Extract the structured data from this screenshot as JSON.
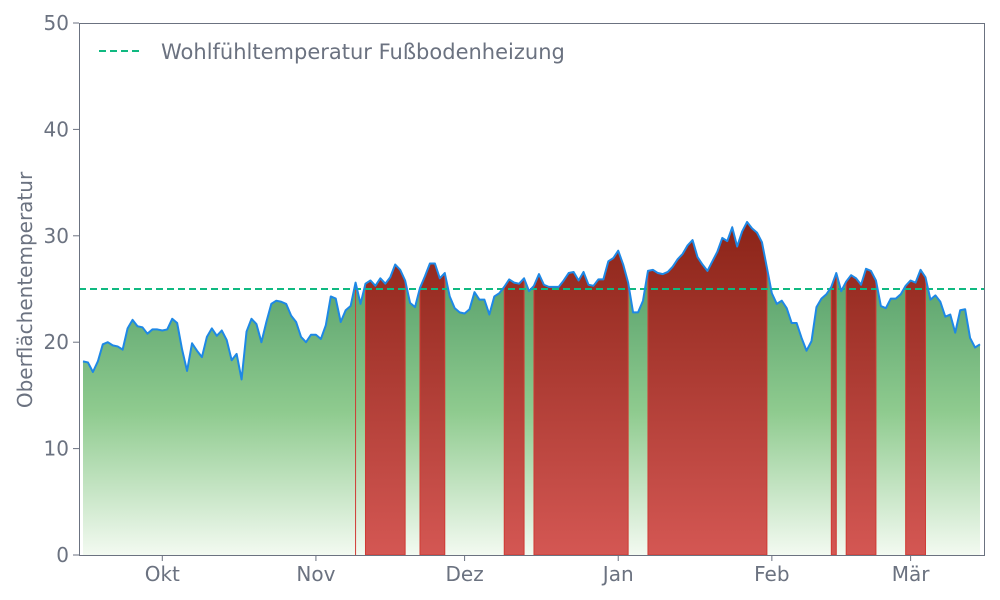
{
  "chart_data": {
    "type": "area",
    "title": "",
    "xlabel": "",
    "ylabel": "Oberflächentemperatur",
    "ylim": [
      0,
      50
    ],
    "yticks": [
      0,
      10,
      20,
      30,
      40,
      50
    ],
    "xticks": [
      {
        "date": "10-01",
        "label": "Okt"
      },
      {
        "date": "11-01",
        "label": "Nov"
      },
      {
        "date": "12-01",
        "label": "Dez"
      },
      {
        "date": "01-01",
        "label": "Jan"
      },
      {
        "date": "02-01",
        "label": "Feb"
      },
      {
        "date": "03-01",
        "label": "Mär"
      }
    ],
    "grid": false,
    "legend": {
      "position": "top-left",
      "entries": [
        "Wohlfühltemperatur Fußbodenheizung"
      ]
    },
    "threshold": {
      "name": "Wohlfühltemperatur Fußbodenheizung",
      "value": 25,
      "color": "#10b981",
      "style": "dashed"
    },
    "colors": {
      "line": "#1e88e5",
      "below_fill": "#5aa36f",
      "above_fill": "#8e2a1e",
      "above_edge": "#d03a33"
    },
    "x": [
      "09-15",
      "09-16",
      "09-17",
      "09-18",
      "09-19",
      "09-20",
      "09-21",
      "09-22",
      "09-23",
      "09-24",
      "09-25",
      "09-26",
      "09-27",
      "09-28",
      "09-29",
      "09-30",
      "10-01",
      "10-02",
      "10-03",
      "10-04",
      "10-05",
      "10-06",
      "10-07",
      "10-08",
      "10-09",
      "10-10",
      "10-11",
      "10-12",
      "10-13",
      "10-14",
      "10-15",
      "10-16",
      "10-17",
      "10-18",
      "10-19",
      "10-20",
      "10-21",
      "10-22",
      "10-23",
      "10-24",
      "10-25",
      "10-26",
      "10-27",
      "10-28",
      "10-29",
      "10-30",
      "10-31",
      "11-01",
      "11-02",
      "11-03",
      "11-04",
      "11-05",
      "11-06",
      "11-07",
      "11-08",
      "11-09",
      "11-10",
      "11-11",
      "11-12",
      "11-13",
      "11-14",
      "11-15",
      "11-16",
      "11-17",
      "11-18",
      "11-19",
      "11-20",
      "11-21",
      "11-22",
      "11-23",
      "11-24",
      "11-25",
      "11-26",
      "11-27",
      "11-28",
      "11-29",
      "11-30",
      "12-01",
      "12-02",
      "12-03",
      "12-04",
      "12-05",
      "12-06",
      "12-07",
      "12-08",
      "12-09",
      "12-10",
      "12-11",
      "12-12",
      "12-13",
      "12-14",
      "12-15",
      "12-16",
      "12-17",
      "12-18",
      "12-19",
      "12-20",
      "12-21",
      "12-22",
      "12-23",
      "12-24",
      "12-25",
      "12-26",
      "12-27",
      "12-28",
      "12-29",
      "12-30",
      "12-31",
      "01-01",
      "01-02",
      "01-03",
      "01-04",
      "01-05",
      "01-06",
      "01-07",
      "01-08",
      "01-09",
      "01-10",
      "01-11",
      "01-12",
      "01-13",
      "01-14",
      "01-15",
      "01-16",
      "01-17",
      "01-18",
      "01-19",
      "01-20",
      "01-21",
      "01-22",
      "01-23",
      "01-24",
      "01-25",
      "01-26",
      "01-27",
      "01-28",
      "01-29",
      "01-30",
      "01-31",
      "02-01",
      "02-02",
      "02-03",
      "02-04",
      "02-05",
      "02-06",
      "02-07",
      "02-08",
      "02-09",
      "02-10",
      "02-11",
      "02-12",
      "02-13",
      "02-14",
      "02-15",
      "02-16",
      "02-17",
      "02-18",
      "02-19",
      "02-20",
      "02-21",
      "02-22",
      "02-23",
      "02-24",
      "02-25",
      "02-26",
      "02-27",
      "02-28",
      "03-01",
      "03-02",
      "03-03",
      "03-04",
      "03-05",
      "03-06",
      "03-07",
      "03-08",
      "03-09",
      "03-10",
      "03-11",
      "03-12",
      "03-13",
      "03-14",
      "03-15"
    ],
    "values": [
      18.2,
      18.1,
      17.2,
      18.2,
      19.8,
      20.0,
      19.7,
      19.6,
      19.3,
      21.3,
      22.1,
      21.5,
      21.4,
      20.8,
      21.2,
      21.2,
      21.1,
      21.2,
      22.2,
      21.8,
      19.3,
      17.3,
      19.9,
      19.2,
      18.6,
      20.5,
      21.3,
      20.6,
      21.1,
      20.2,
      18.3,
      18.9,
      16.5,
      21.0,
      22.2,
      21.7,
      20.0,
      21.9,
      23.6,
      23.9,
      23.8,
      23.6,
      22.5,
      21.9,
      20.5,
      20.0,
      20.7,
      20.7,
      20.3,
      21.6,
      24.3,
      24.1,
      21.9,
      23.0,
      23.4,
      25.6,
      23.6,
      25.5,
      25.8,
      25.3,
      26.0,
      25.5,
      26.1,
      27.3,
      26.8,
      25.8,
      23.7,
      23.3,
      25.1,
      26.2,
      27.4,
      27.4,
      26.0,
      26.5,
      24.3,
      23.2,
      22.8,
      22.7,
      23.1,
      24.7,
      24.0,
      24.0,
      22.6,
      24.3,
      24.6,
      25.2,
      25.9,
      25.6,
      25.5,
      26.0,
      24.8,
      25.3,
      26.4,
      25.4,
      25.2,
      25.2,
      25.2,
      25.8,
      26.5,
      26.6,
      25.8,
      26.6,
      25.4,
      25.3,
      25.9,
      25.9,
      27.6,
      27.9,
      28.6,
      27.3,
      25.6,
      22.8,
      22.8,
      23.9,
      26.7,
      26.8,
      26.5,
      26.4,
      26.6,
      27.1,
      27.8,
      28.3,
      29.1,
      29.6,
      28.0,
      27.3,
      26.7,
      27.6,
      28.5,
      29.8,
      29.5,
      30.8,
      29.0,
      30.4,
      31.3,
      30.7,
      30.3,
      29.4,
      27.0,
      24.6,
      23.6,
      23.9,
      23.2,
      21.8,
      21.8,
      20.4,
      19.2,
      20.1,
      23.3,
      24.1,
      24.5,
      25.2,
      26.5,
      24.8,
      25.7,
      26.3,
      26.0,
      25.4,
      26.9,
      26.7,
      25.8,
      23.4,
      23.2,
      24.1,
      24.1,
      24.5,
      25.3,
      25.8,
      25.6,
      26.8,
      26.1,
      24.0,
      24.4,
      23.8,
      22.4,
      22.6,
      20.9,
      23.0,
      23.1,
      20.4,
      19.5,
      19.8
    ]
  }
}
